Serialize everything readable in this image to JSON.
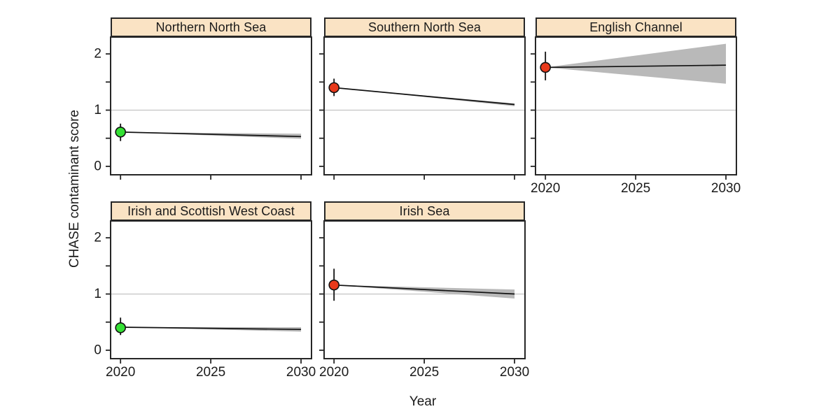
{
  "colors": {
    "strip_fill": "#FAE3C4",
    "strip_border": "#262626",
    "panel_border": "#262626",
    "good_status_green": "#34E034",
    "bad_status_red": "#E8391B",
    "ribbon_gray": "#B9B9B9",
    "reference_line_gray": "#C8C8C8",
    "trend_line": "#111111",
    "text": "#1A1A1A"
  },
  "chart_data": {
    "type": "line",
    "description": "Faceted trend chart: CHASE contaminant score per sea region, observed 2020 point with error bar and projected trend line to 2030 with confidence ribbon; horizontal reference line at score = 1.",
    "xlabel": "Year",
    "ylabel": "CHASE contaminant score",
    "x_ticks": [
      2020,
      2025,
      2030
    ],
    "y_ticks": [
      0,
      1,
      2
    ],
    "y_minor_ticks": [
      0.5,
      1.5
    ],
    "xlim": [
      2019.45,
      2030.58
    ],
    "ylim": [
      -0.15,
      2.3
    ],
    "reference_line_y": 1,
    "grid": "off",
    "facets": [
      {
        "name": "Northern North Sea",
        "grid": {
          "row": 0,
          "col": 0
        },
        "show_y_labels": true,
        "show_x_labels": false,
        "point": {
          "year": 2020,
          "value": 0.61,
          "ci_low": 0.45,
          "ci_high": 0.76,
          "color": "#34E034",
          "status": "good"
        },
        "trend": {
          "x": [
            2020,
            2030
          ],
          "y": [
            0.61,
            0.53
          ]
        },
        "ribbon_at_2030": [
          0.49,
          0.58
        ]
      },
      {
        "name": "Southern North Sea",
        "grid": {
          "row": 0,
          "col": 1
        },
        "show_y_labels": false,
        "show_x_labels": false,
        "point": {
          "year": 2020,
          "value": 1.4,
          "ci_low": 1.25,
          "ci_high": 1.56,
          "color": "#E8391B",
          "status": "bad"
        },
        "trend": {
          "x": [
            2020,
            2030
          ],
          "y": [
            1.4,
            1.1
          ]
        },
        "ribbon_at_2030": [
          1.07,
          1.12
        ]
      },
      {
        "name": "English Channel",
        "grid": {
          "row": 0,
          "col": 2
        },
        "show_y_labels": false,
        "show_x_labels": true,
        "point": {
          "year": 2020,
          "value": 1.76,
          "ci_low": 1.53,
          "ci_high": 2.04,
          "color": "#E8391B",
          "status": "bad"
        },
        "trend": {
          "x": [
            2020,
            2030
          ],
          "y": [
            1.76,
            1.8
          ]
        },
        "ribbon_at_2030": [
          1.47,
          2.18
        ]
      },
      {
        "name": "Irish and Scottish West Coast",
        "grid": {
          "row": 1,
          "col": 0
        },
        "show_y_labels": true,
        "show_x_labels": true,
        "point": {
          "year": 2020,
          "value": 0.4,
          "ci_low": 0.27,
          "ci_high": 0.58,
          "color": "#34E034",
          "status": "good"
        },
        "trend": {
          "x": [
            2020,
            2030
          ],
          "y": [
            0.41,
            0.37
          ]
        },
        "ribbon_at_2030": [
          0.33,
          0.41
        ]
      },
      {
        "name": "Irish Sea",
        "grid": {
          "row": 1,
          "col": 1
        },
        "show_y_labels": false,
        "show_x_labels": true,
        "point": {
          "year": 2020,
          "value": 1.16,
          "ci_low": 0.88,
          "ci_high": 1.45,
          "color": "#E8391B",
          "status": "bad"
        },
        "trend": {
          "x": [
            2020,
            2030
          ],
          "y": [
            1.16,
            1.0
          ]
        },
        "ribbon_at_2030": [
          0.92,
          1.08
        ]
      }
    ]
  }
}
